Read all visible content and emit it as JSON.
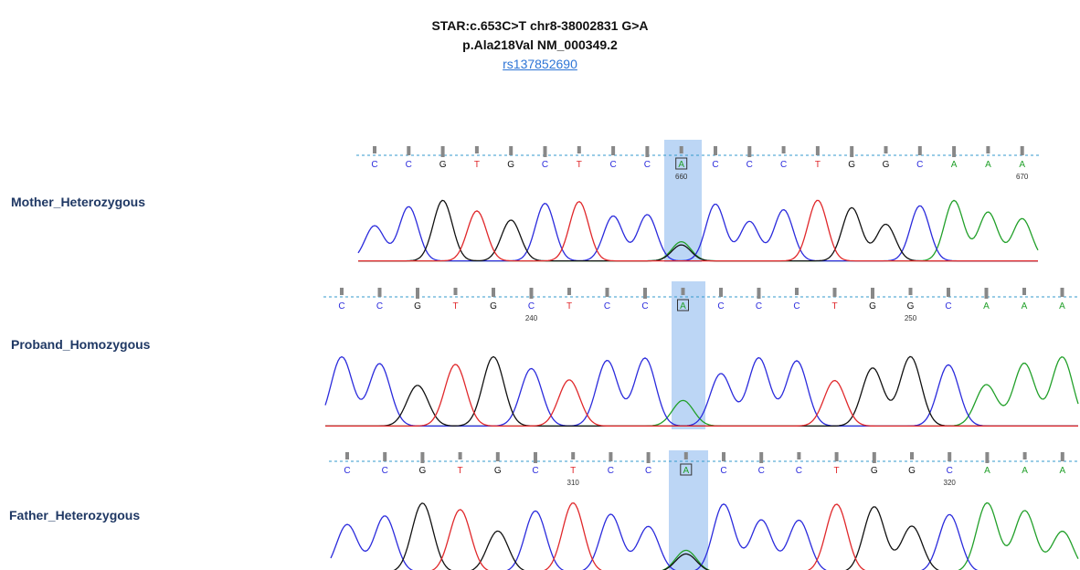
{
  "header": {
    "line1": "STAR:c.653C>T chr8-38002831 G>A",
    "line2": "p.Ala218Val  NM_000349.2",
    "link": "rs137852690"
  },
  "tracks": [
    {
      "label": "Mother_Heterozygous",
      "bases": [
        "C",
        "C",
        "G",
        "T",
        "G",
        "C",
        "T",
        "C",
        "C",
        "A",
        "C",
        "C",
        "C",
        "T",
        "G",
        "G",
        "C",
        "A",
        "A",
        "A"
      ],
      "numbers": [
        null,
        null,
        null,
        null,
        null,
        null,
        null,
        null,
        null,
        660,
        null,
        null,
        null,
        null,
        null,
        null,
        null,
        null,
        null,
        670
      ]
    },
    {
      "label": "Proband_Homozygous",
      "bases": [
        "C",
        "C",
        "G",
        "T",
        "G",
        "C",
        "T",
        "C",
        "C",
        "A",
        "C",
        "C",
        "C",
        "T",
        "G",
        "G",
        "C",
        "A",
        "A",
        "A"
      ],
      "numbers": [
        null,
        null,
        null,
        null,
        null,
        240,
        null,
        null,
        null,
        null,
        null,
        null,
        null,
        null,
        null,
        250,
        null,
        null,
        null,
        null
      ]
    },
    {
      "label": "Father_Heterozygous",
      "bases": [
        "C",
        "C",
        "G",
        "T",
        "G",
        "C",
        "T",
        "C",
        "C",
        "A",
        "C",
        "C",
        "C",
        "T",
        "G",
        "G",
        "C",
        "A",
        "A",
        "A"
      ],
      "numbers": [
        null,
        null,
        null,
        null,
        null,
        null,
        310,
        null,
        null,
        null,
        null,
        null,
        null,
        null,
        null,
        null,
        320,
        null,
        null,
        null
      ]
    }
  ]
}
